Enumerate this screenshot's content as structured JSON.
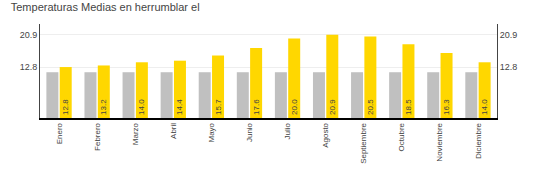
{
  "chart_data": {
    "type": "bar",
    "title": "Temperaturas Medias en herrumblar el",
    "categories": [
      "Enero",
      "Febrero",
      "Marzo",
      "Abril",
      "Mayo",
      "Junio",
      "Julio",
      "Agosto",
      "Septiembre",
      "Octubre",
      "Noviembre",
      "Diciembre"
    ],
    "series": [
      {
        "color": "#C0C0C0",
        "values": [
          11.5,
          11.5,
          11.5,
          11.5,
          11.5,
          11.5,
          11.5,
          11.5,
          11.5,
          11.5,
          11.5,
          11.5
        ]
      },
      {
        "color": "#FFD700",
        "values": [
          12.8,
          13.2,
          14.0,
          14.4,
          15.7,
          17.6,
          20.0,
          20.9,
          20.5,
          18.5,
          16.3,
          14.0
        ],
        "value_labels": [
          "12.8",
          "13.2",
          "14.0",
          "14.4",
          "15.7",
          "17.6",
          "20.0",
          "20.9",
          "20.5",
          "18.5",
          "16.3",
          "14.0"
        ],
        "data_labels": true
      }
    ],
    "ylim": [
      0,
      23.617
    ],
    "yticks": [
      12.8,
      20.9
    ],
    "y2lim": [
      0,
      23.617
    ],
    "y2ticks": [
      12.8,
      20.9
    ],
    "grid": true
  }
}
